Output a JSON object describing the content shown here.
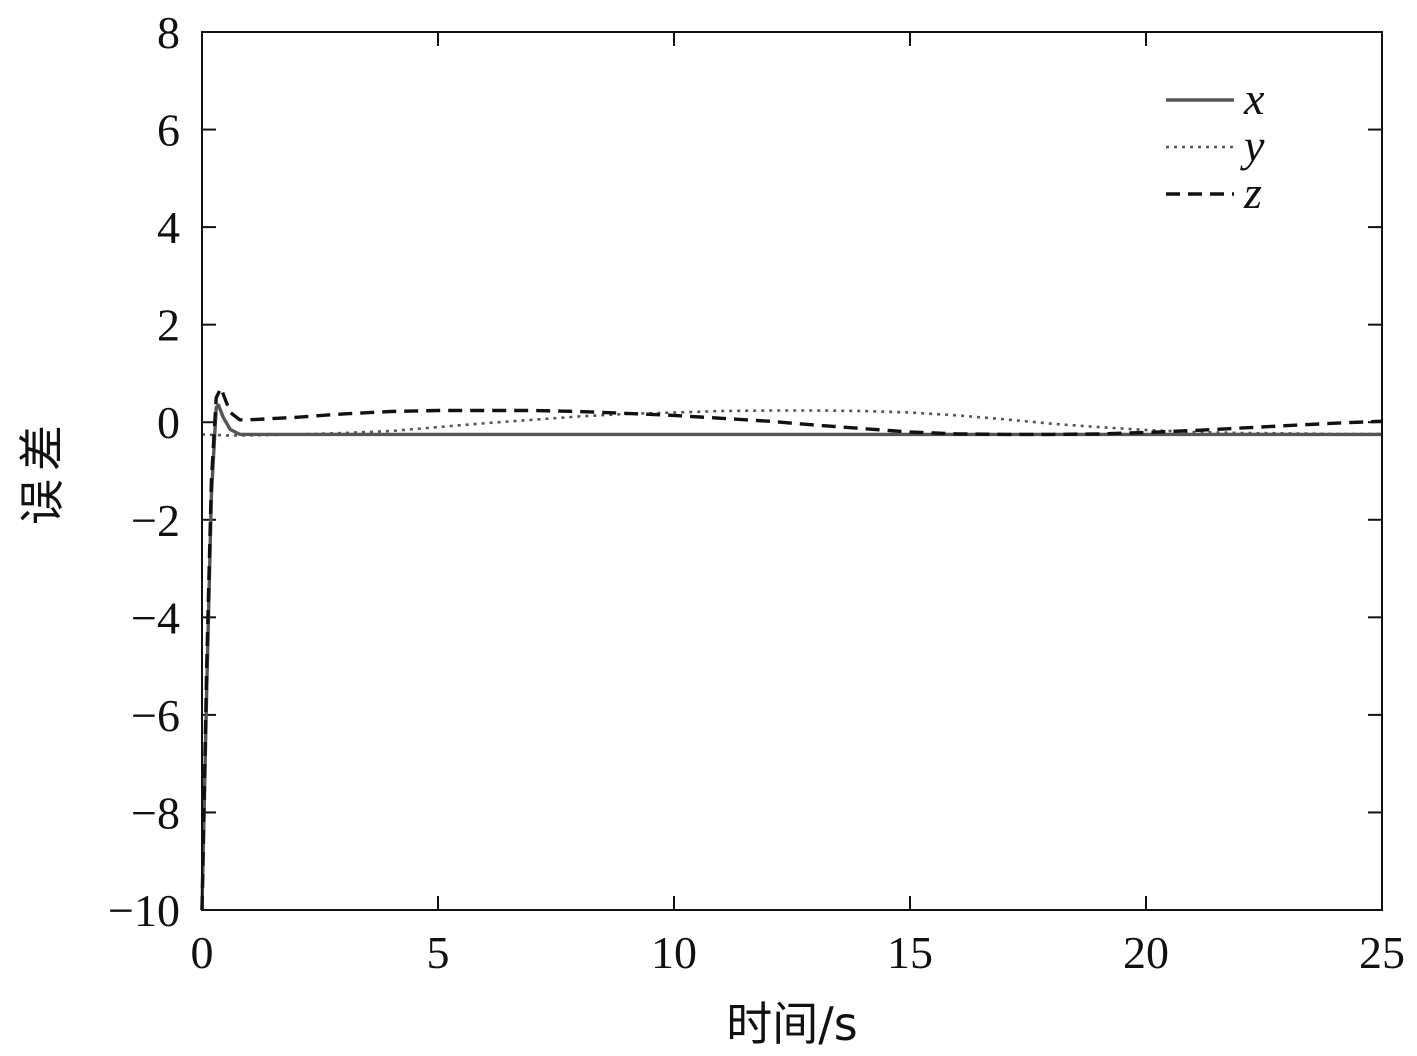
{
  "chart_data": {
    "type": "line",
    "title": "",
    "xlabel": "时间/s",
    "ylabel": "误差",
    "xlim": [
      0,
      25
    ],
    "ylim": [
      -10,
      8
    ],
    "xticks": [
      0,
      5,
      10,
      15,
      20,
      25
    ],
    "yticks": [
      -10,
      -8,
      -6,
      -4,
      -2,
      0,
      2,
      4,
      6,
      8
    ],
    "xtick_labels": [
      "0",
      "5",
      "10",
      "15",
      "20",
      "25"
    ],
    "ytick_labels": [
      "−10",
      "−8",
      "−6",
      "−4",
      "−2",
      "0",
      "2",
      "4",
      "6",
      "8"
    ],
    "grid": false,
    "legend_position": "top-right",
    "series": [
      {
        "name": "x",
        "color": "#555555",
        "style": "solid",
        "x": [
          0,
          0.1,
          0.2,
          0.3,
          0.35,
          0.45,
          0.6,
          0.8,
          1,
          2,
          5,
          10,
          15,
          20,
          25
        ],
        "y": [
          -10,
          -5.5,
          -1.5,
          0.3,
          0.35,
          0.1,
          -0.15,
          -0.25,
          -0.25,
          -0.25,
          -0.25,
          -0.25,
          -0.25,
          -0.25,
          -0.25
        ]
      },
      {
        "name": "y",
        "color": "#555555",
        "style": "dotted",
        "x": [
          0,
          0.5,
          1,
          2,
          3,
          4,
          5,
          6,
          7,
          8,
          9,
          10,
          11,
          12,
          13,
          14,
          15,
          16,
          17,
          18,
          19,
          20,
          21,
          22,
          23,
          24,
          25
        ],
        "y": [
          -0.25,
          -0.27,
          -0.27,
          -0.25,
          -0.22,
          -0.18,
          -0.1,
          -0.02,
          0.05,
          0.12,
          0.17,
          0.2,
          0.23,
          0.24,
          0.24,
          0.23,
          0.2,
          0.14,
          0.06,
          -0.03,
          -0.1,
          -0.16,
          -0.2,
          -0.22,
          -0.23,
          -0.24,
          -0.24
        ]
      },
      {
        "name": "z",
        "color": "#111111",
        "style": "dashed",
        "x": [
          0,
          0.1,
          0.2,
          0.3,
          0.4,
          0.5,
          0.6,
          0.8,
          1,
          2,
          3,
          4,
          5,
          6,
          7,
          8,
          9,
          10,
          11,
          12,
          13,
          14,
          15,
          16,
          17,
          18,
          19,
          20,
          21,
          22,
          23,
          24,
          25
        ],
        "y": [
          -10,
          -5,
          -1.2,
          0.5,
          0.7,
          0.45,
          0.2,
          0.05,
          0.05,
          0.1,
          0.17,
          0.22,
          0.24,
          0.24,
          0.24,
          0.22,
          0.18,
          0.14,
          0.08,
          0.02,
          -0.06,
          -0.13,
          -0.2,
          -0.24,
          -0.25,
          -0.25,
          -0.24,
          -0.21,
          -0.17,
          -0.12,
          -0.07,
          -0.02,
          0.02
        ]
      }
    ]
  }
}
